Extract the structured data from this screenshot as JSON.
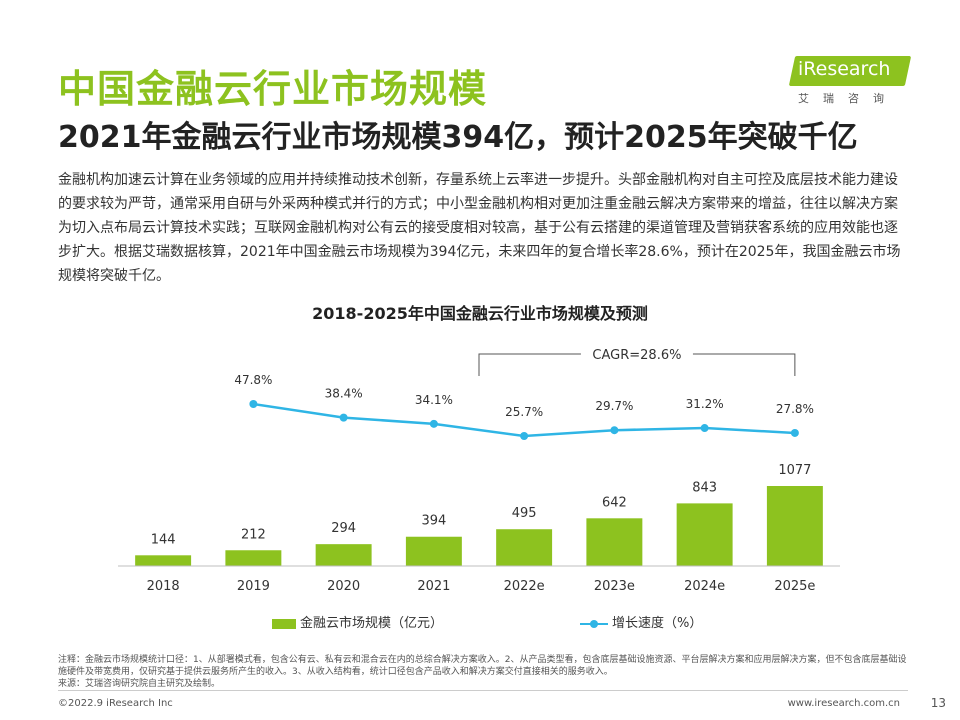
{
  "header": {
    "title": "中国金融云行业市场规模",
    "subtitle": "2021年金融云行业市场规模394亿，预计2025年突破千亿"
  },
  "logo": {
    "name": "iResearch",
    "subtitle": "艾瑞咨询"
  },
  "description": "金融机构加速云计算在业务领域的应用并持续推动技术创新，存量系统上云率进一步提升。头部金融机构对自主可控及底层技术能力建设的要求较为严苛，通常采用自研与外采两种模式并行的方式；中小型金融机构相对更加注重金融云解决方案带来的增益，往往以解决方案为切入点布局云计算技术实践；互联网金融机构对公有云的接受度相对较高，基于公有云搭建的渠道管理及营销获客系统的应用效能也逐步扩大。根据艾瑞数据核算，2021年中国金融云市场规模为394亿元，未来四年的复合增长率28.6%，预计在2025年，我国金融云市场规模将突破千亿。",
  "chart_data": {
    "type": "bar",
    "title": "2018-2025年中国金融云行业市场规模及预测",
    "categories": [
      "2018",
      "2019",
      "2020",
      "2021",
      "2022e",
      "2023e",
      "2024e",
      "2025e"
    ],
    "series": [
      {
        "name": "金融云市场规模（亿元）",
        "type": "bar",
        "values": [
          144,
          212,
          294,
          394,
          495,
          642,
          843,
          1077
        ],
        "color": "#8dc21f"
      },
      {
        "name": "增长速度（%）",
        "type": "line",
        "values": [
          null,
          47.8,
          38.4,
          34.1,
          25.7,
          29.7,
          31.2,
          27.8
        ],
        "labels": [
          "",
          "47.8%",
          "38.4%",
          "34.1%",
          "25.7%",
          "29.7%",
          "31.2%",
          "27.8%"
        ],
        "color": "#2fb5e5"
      }
    ],
    "annotation": "CAGR=28.6%",
    "ylim": [
      0,
      1200
    ]
  },
  "legend": {
    "bar_label": "金融云市场规模（亿元）",
    "line_label": "增长速度（%）"
  },
  "footnote": {
    "note": "注释：金融云市场规模统计口径：1、从部署模式看，包含公有云、私有云和混合云在内的总综合解决方案收入。2、从产品类型看，包含底层基础设施资源、平台层解决方案和应用层解决方案，但不包含底层基础设施硬件及带宽费用，仅研究基于提供云服务所产生的收入。3、从收入结构看，统计口径包含产品收入和解决方案交付直接相关的服务收入。",
    "source": "来源：艾瑞咨询研究院自主研究及绘制。"
  },
  "footer": {
    "copyright": "©2022.9 iResearch Inc",
    "website": "www.iresearch.com.cn",
    "page": "13"
  }
}
